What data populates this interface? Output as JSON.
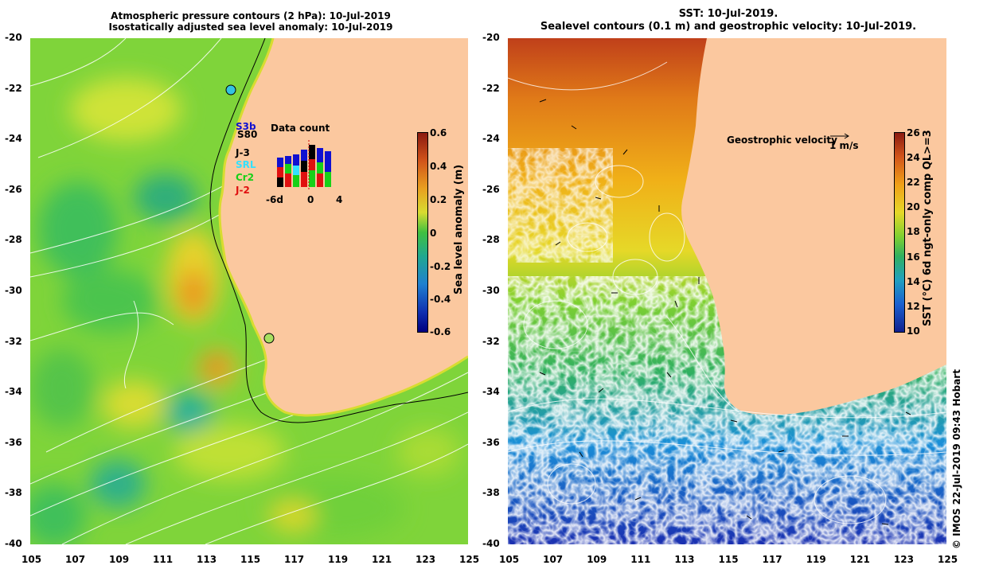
{
  "left": {
    "title_line1": "Atmospheric pressure contours (2 hPa): 10-Jul-2019",
    "title_line2": "Isostatically adjusted sea level anomaly: 10-Jul-2019",
    "data_count_title": "Data count",
    "legend": [
      {
        "label": "S3b",
        "color": "#1010d0"
      },
      {
        "label": "S80",
        "color": "#000000"
      },
      {
        "label": "J-3",
        "color": "#000000"
      },
      {
        "label": "SRL",
        "color": "#33e0ff"
      },
      {
        "label": "Cr2",
        "color": "#18d018"
      },
      {
        "label": "J-2",
        "color": "#e01010"
      }
    ],
    "count_axis": [
      "-6d",
      "0",
      "4"
    ],
    "colorbar": {
      "label": "Sea level anomaly (m)",
      "ticks": [
        "0.6",
        "0.4",
        "0.2",
        "0",
        "-0.2",
        "-0.4",
        "-0.6"
      ]
    }
  },
  "right": {
    "title_line1": "SST: 10-Jul-2019.",
    "title_line2": "Sealevel contours (0.1 m) and geostrophic velocity: 10-Jul-2019.",
    "velocity_label": "Geostrophic velocity",
    "velocity_scale": "1 m/s",
    "colorbar": {
      "label": "SST (°C) 6d ngt-only comp QL>=3",
      "ticks": [
        "26",
        "24",
        "22",
        "20",
        "18",
        "16",
        "14",
        "12",
        "10"
      ]
    }
  },
  "axes": {
    "lat_ticks": [
      "-20",
      "-22",
      "-24",
      "-26",
      "-28",
      "-30",
      "-32",
      "-34",
      "-36",
      "-38",
      "-40"
    ],
    "lon_ticks": [
      "105",
      "107",
      "109",
      "111",
      "113",
      "115",
      "117",
      "119",
      "121",
      "123",
      "125"
    ]
  },
  "credit": "© IMOS 22-Jul-2019 09:43 Hobart"
}
